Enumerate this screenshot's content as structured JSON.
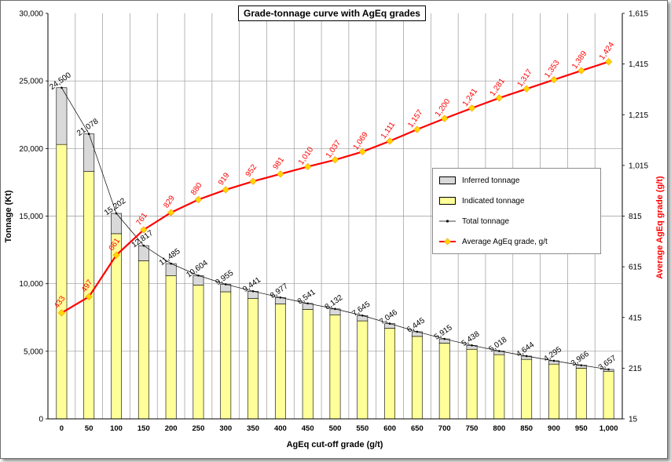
{
  "chart_data": {
    "type": "bar",
    "title": "Grade-tonnage curve with AgEq grades",
    "xlabel": "AgEq cut-off grade (g/t)",
    "ylabel": "Tonnage (Kt)",
    "y2label": "Average AgEq grade (g/t)",
    "ylim": [
      0,
      30000
    ],
    "y2lim": [
      15,
      1615
    ],
    "y_ticks": [
      "0",
      "5,000",
      "10,000",
      "15,000",
      "20,000",
      "25,000",
      "30,000"
    ],
    "y2_ticks": [
      "15",
      "215",
      "415",
      "615",
      "815",
      "1,015",
      "1,215",
      "1,415",
      "1,615"
    ],
    "categories": [
      "0",
      "50",
      "100",
      "150",
      "200",
      "250",
      "300",
      "350",
      "400",
      "450",
      "500",
      "550",
      "600",
      "650",
      "700",
      "750",
      "800",
      "850",
      "900",
      "950",
      "1,000"
    ],
    "series": [
      {
        "name": "Indicated tonnage",
        "kind": "bar",
        "color": "#ffff99",
        "values": [
          20300,
          18300,
          13700,
          11700,
          10600,
          9900,
          9400,
          8900,
          8500,
          8100,
          7700,
          7250,
          6700,
          6100,
          5600,
          5150,
          4750,
          4400,
          4050,
          3750,
          3500
        ]
      },
      {
        "name": "Inferred tonnage",
        "kind": "bar",
        "color": "#d9d9d9",
        "values": [
          4200,
          2778,
          1502,
          1117,
          885,
          704,
          555,
          541,
          477,
          441,
          432,
          395,
          346,
          345,
          315,
          288,
          268,
          244,
          245,
          216,
          157
        ]
      },
      {
        "name": "Total tonnage",
        "kind": "line",
        "color": "#000000",
        "values": [
          24500,
          21078,
          15202,
          12817,
          11485,
          10604,
          9955,
          9441,
          8977,
          8541,
          8132,
          7645,
          7046,
          6445,
          5915,
          5438,
          5018,
          4644,
          4295,
          3966,
          3657
        ],
        "labels": [
          "24,500",
          "21,078",
          "15,202",
          "12,817",
          "11,485",
          "10,604",
          "9,955",
          "9,441",
          "8,977",
          "8,541",
          "8,132",
          "7,645",
          "7,046",
          "6,445",
          "5,915",
          "5,438",
          "5,018",
          "4,644",
          "4,295",
          "3,966",
          "3,657"
        ]
      },
      {
        "name": "Average AgEq grade, g/t",
        "kind": "line",
        "axis": "y2",
        "color": "#ff0000",
        "marker_color": "#ffd700",
        "values": [
          433,
          497,
          661,
          761,
          829,
          880,
          919,
          952,
          981,
          1010,
          1037,
          1069,
          1111,
          1157,
          1200,
          1241,
          1281,
          1317,
          1353,
          1389,
          1424
        ],
        "labels": [
          "433",
          "497",
          "661",
          "761",
          "829",
          "880",
          "919",
          "952",
          "981",
          "1,010",
          "1,037",
          "1,069",
          "1,111",
          "1,157",
          "1,200",
          "1,241",
          "1,281",
          "1,317",
          "1,353",
          "1,389",
          "1,424"
        ]
      }
    ],
    "grid": true,
    "legend_position": "right"
  }
}
